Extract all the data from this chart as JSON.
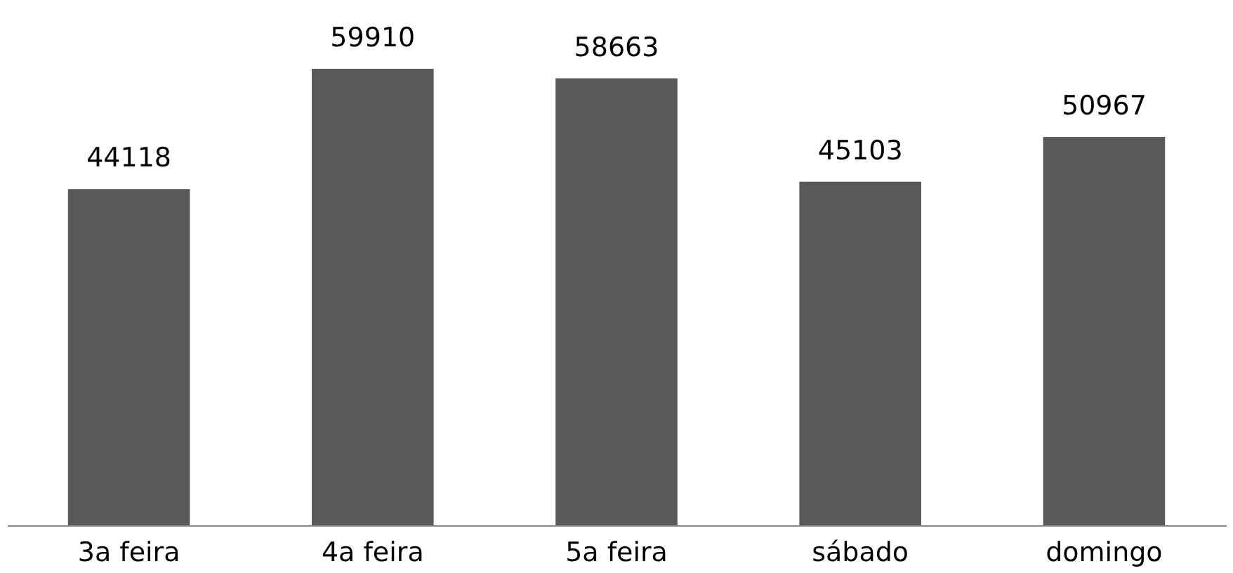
{
  "chart_data": {
    "type": "bar",
    "categories": [
      "3a feira",
      "4a feira",
      "5a feira",
      "sábado",
      "domingo"
    ],
    "values": [
      44118,
      59910,
      58663,
      45103,
      50967
    ],
    "color": "#595959",
    "data_labels": true
  }
}
